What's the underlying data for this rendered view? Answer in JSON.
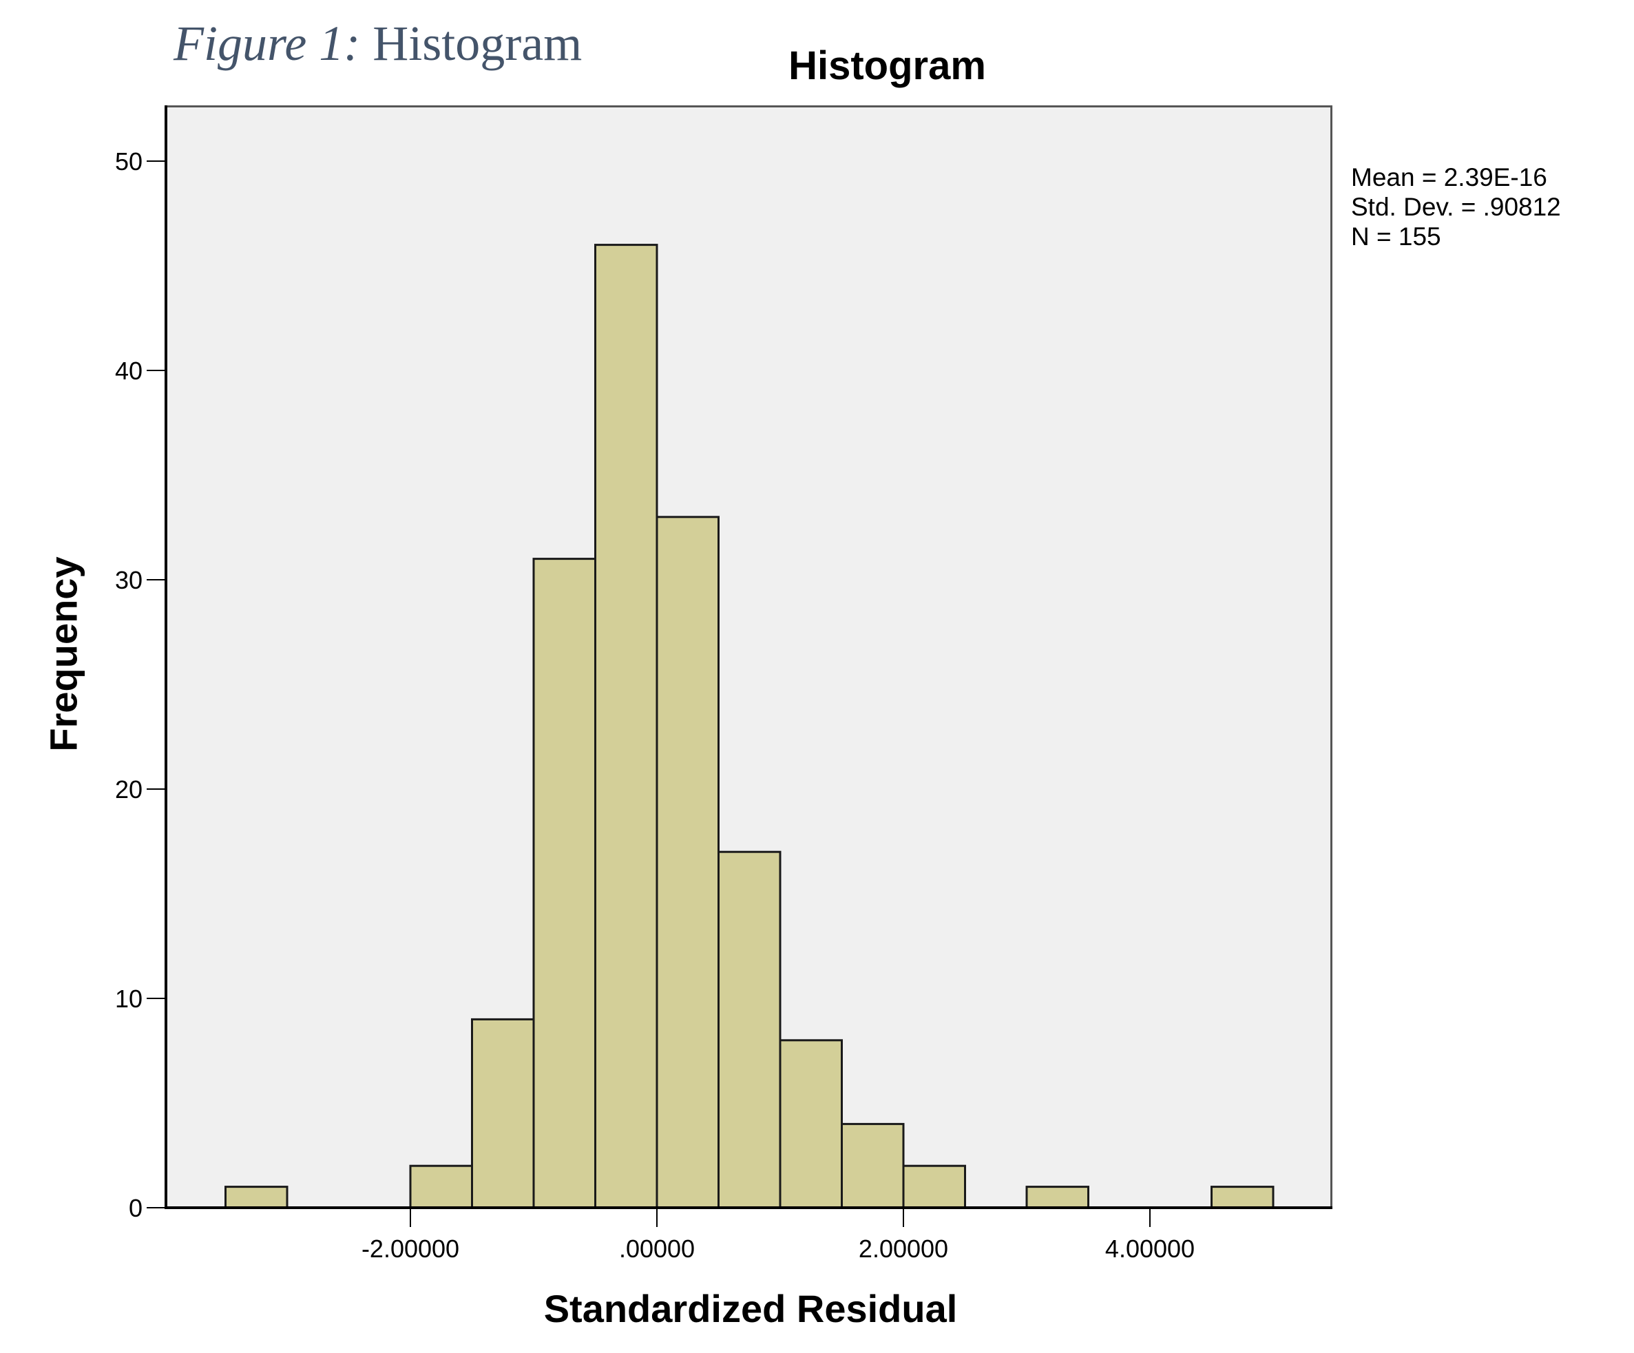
{
  "caption": {
    "figure_label": "Figure 1:",
    "title": " Histogram"
  },
  "chart_data": {
    "type": "bar",
    "title": "Histogram",
    "xlabel": "Standardized Residual",
    "ylabel": "Frequency",
    "bin_width": 0.5,
    "bins": [
      {
        "x0": -3.5,
        "x1": -3.0,
        "count": 1
      },
      {
        "x0": -2.0,
        "x1": -1.5,
        "count": 2
      },
      {
        "x0": -1.5,
        "x1": -1.0,
        "count": 9
      },
      {
        "x0": -1.0,
        "x1": -0.5,
        "count": 31
      },
      {
        "x0": -0.5,
        "x1": 0.0,
        "count": 46
      },
      {
        "x0": 0.0,
        "x1": 0.5,
        "count": 33
      },
      {
        "x0": 0.5,
        "x1": 1.0,
        "count": 17
      },
      {
        "x0": 1.0,
        "x1": 1.5,
        "count": 8
      },
      {
        "x0": 1.5,
        "x1": 2.0,
        "count": 4
      },
      {
        "x0": 2.0,
        "x1": 2.5,
        "count": 2
      },
      {
        "x0": 3.0,
        "x1": 3.5,
        "count": 1
      },
      {
        "x0": 4.5,
        "x1": 5.0,
        "count": 1
      }
    ],
    "x_ticks": [
      {
        "value": -2,
        "label": "-2.00000"
      },
      {
        "value": 0,
        "label": ".00000"
      },
      {
        "value": 2,
        "label": "2.00000"
      },
      {
        "value": 4,
        "label": "4.00000"
      }
    ],
    "y_ticks": [
      0,
      10,
      20,
      30,
      40,
      50
    ],
    "ylim": [
      0,
      52.7
    ],
    "xlim": [
      -4.0,
      5.45
    ],
    "grid": false,
    "legend": null,
    "colors": {
      "bar_fill": "#d3cf98",
      "bar_stroke": "#1a1a1a",
      "plot_bg": "#f0f0f0"
    },
    "stats": {
      "mean": "Mean = 2.39E-16",
      "std_dev": "Std. Dev. = .90812",
      "n": "N = 155"
    }
  }
}
